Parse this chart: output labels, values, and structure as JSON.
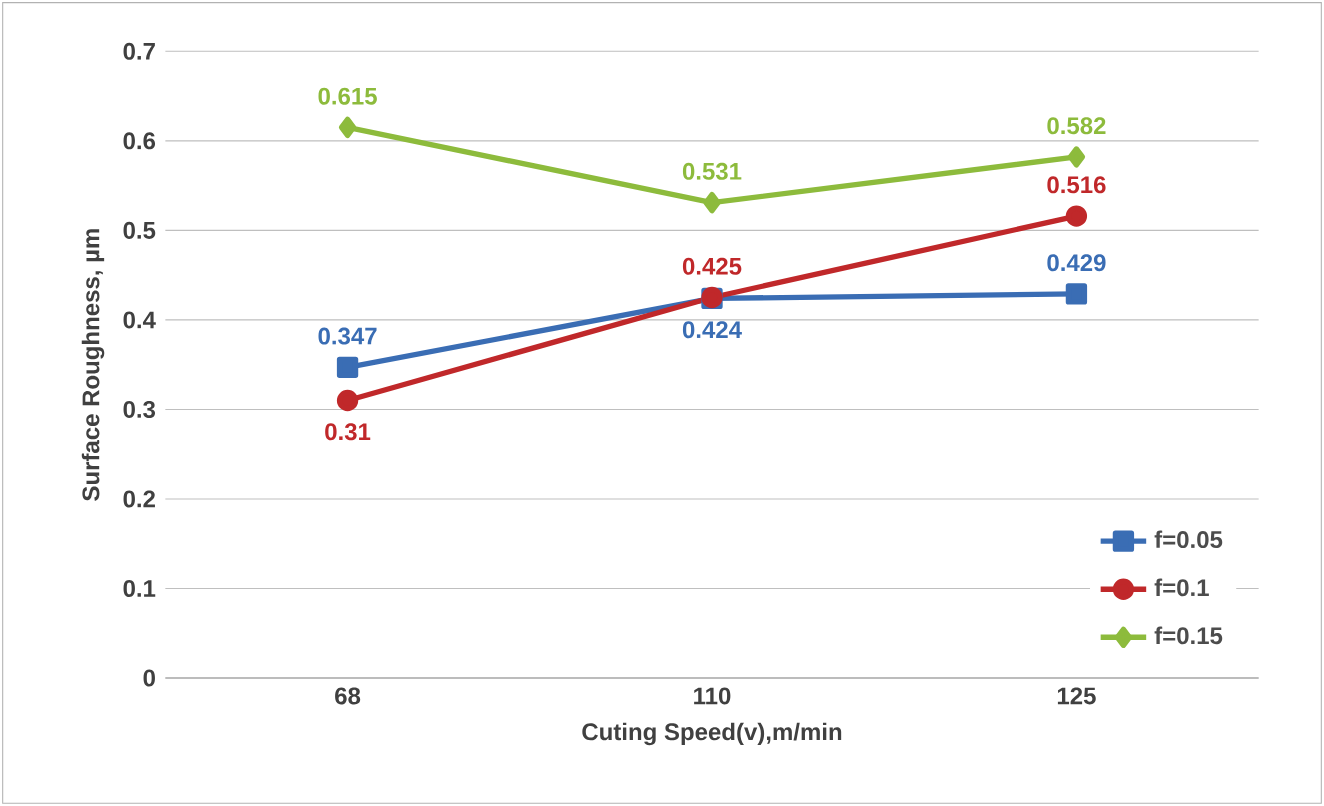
{
  "chart_data": {
    "type": "line",
    "xlabel": "Cuting Speed(v),m/min",
    "ylabel": "Surface  Roughness, µm",
    "categories": [
      "68",
      "110",
      "125"
    ],
    "series": [
      {
        "name": "f=0.05",
        "color": "#3a6db4",
        "marker": "square",
        "values": [
          0.347,
          0.424,
          0.429
        ]
      },
      {
        "name": "f=0.1",
        "color": "#c0282a",
        "marker": "circle",
        "values": [
          0.31,
          0.425,
          0.516
        ]
      },
      {
        "name": "f=0.15",
        "color": "#8dbb3c",
        "marker": "diamond",
        "values": [
          0.615,
          0.531,
          0.582
        ]
      }
    ],
    "ylim": [
      0,
      0.7
    ],
    "yticks": [
      0,
      0.1,
      0.2,
      0.3,
      0.4,
      0.5,
      0.6,
      0.7
    ],
    "grid": "y",
    "legend": "bottom right",
    "data_labels": true
  }
}
